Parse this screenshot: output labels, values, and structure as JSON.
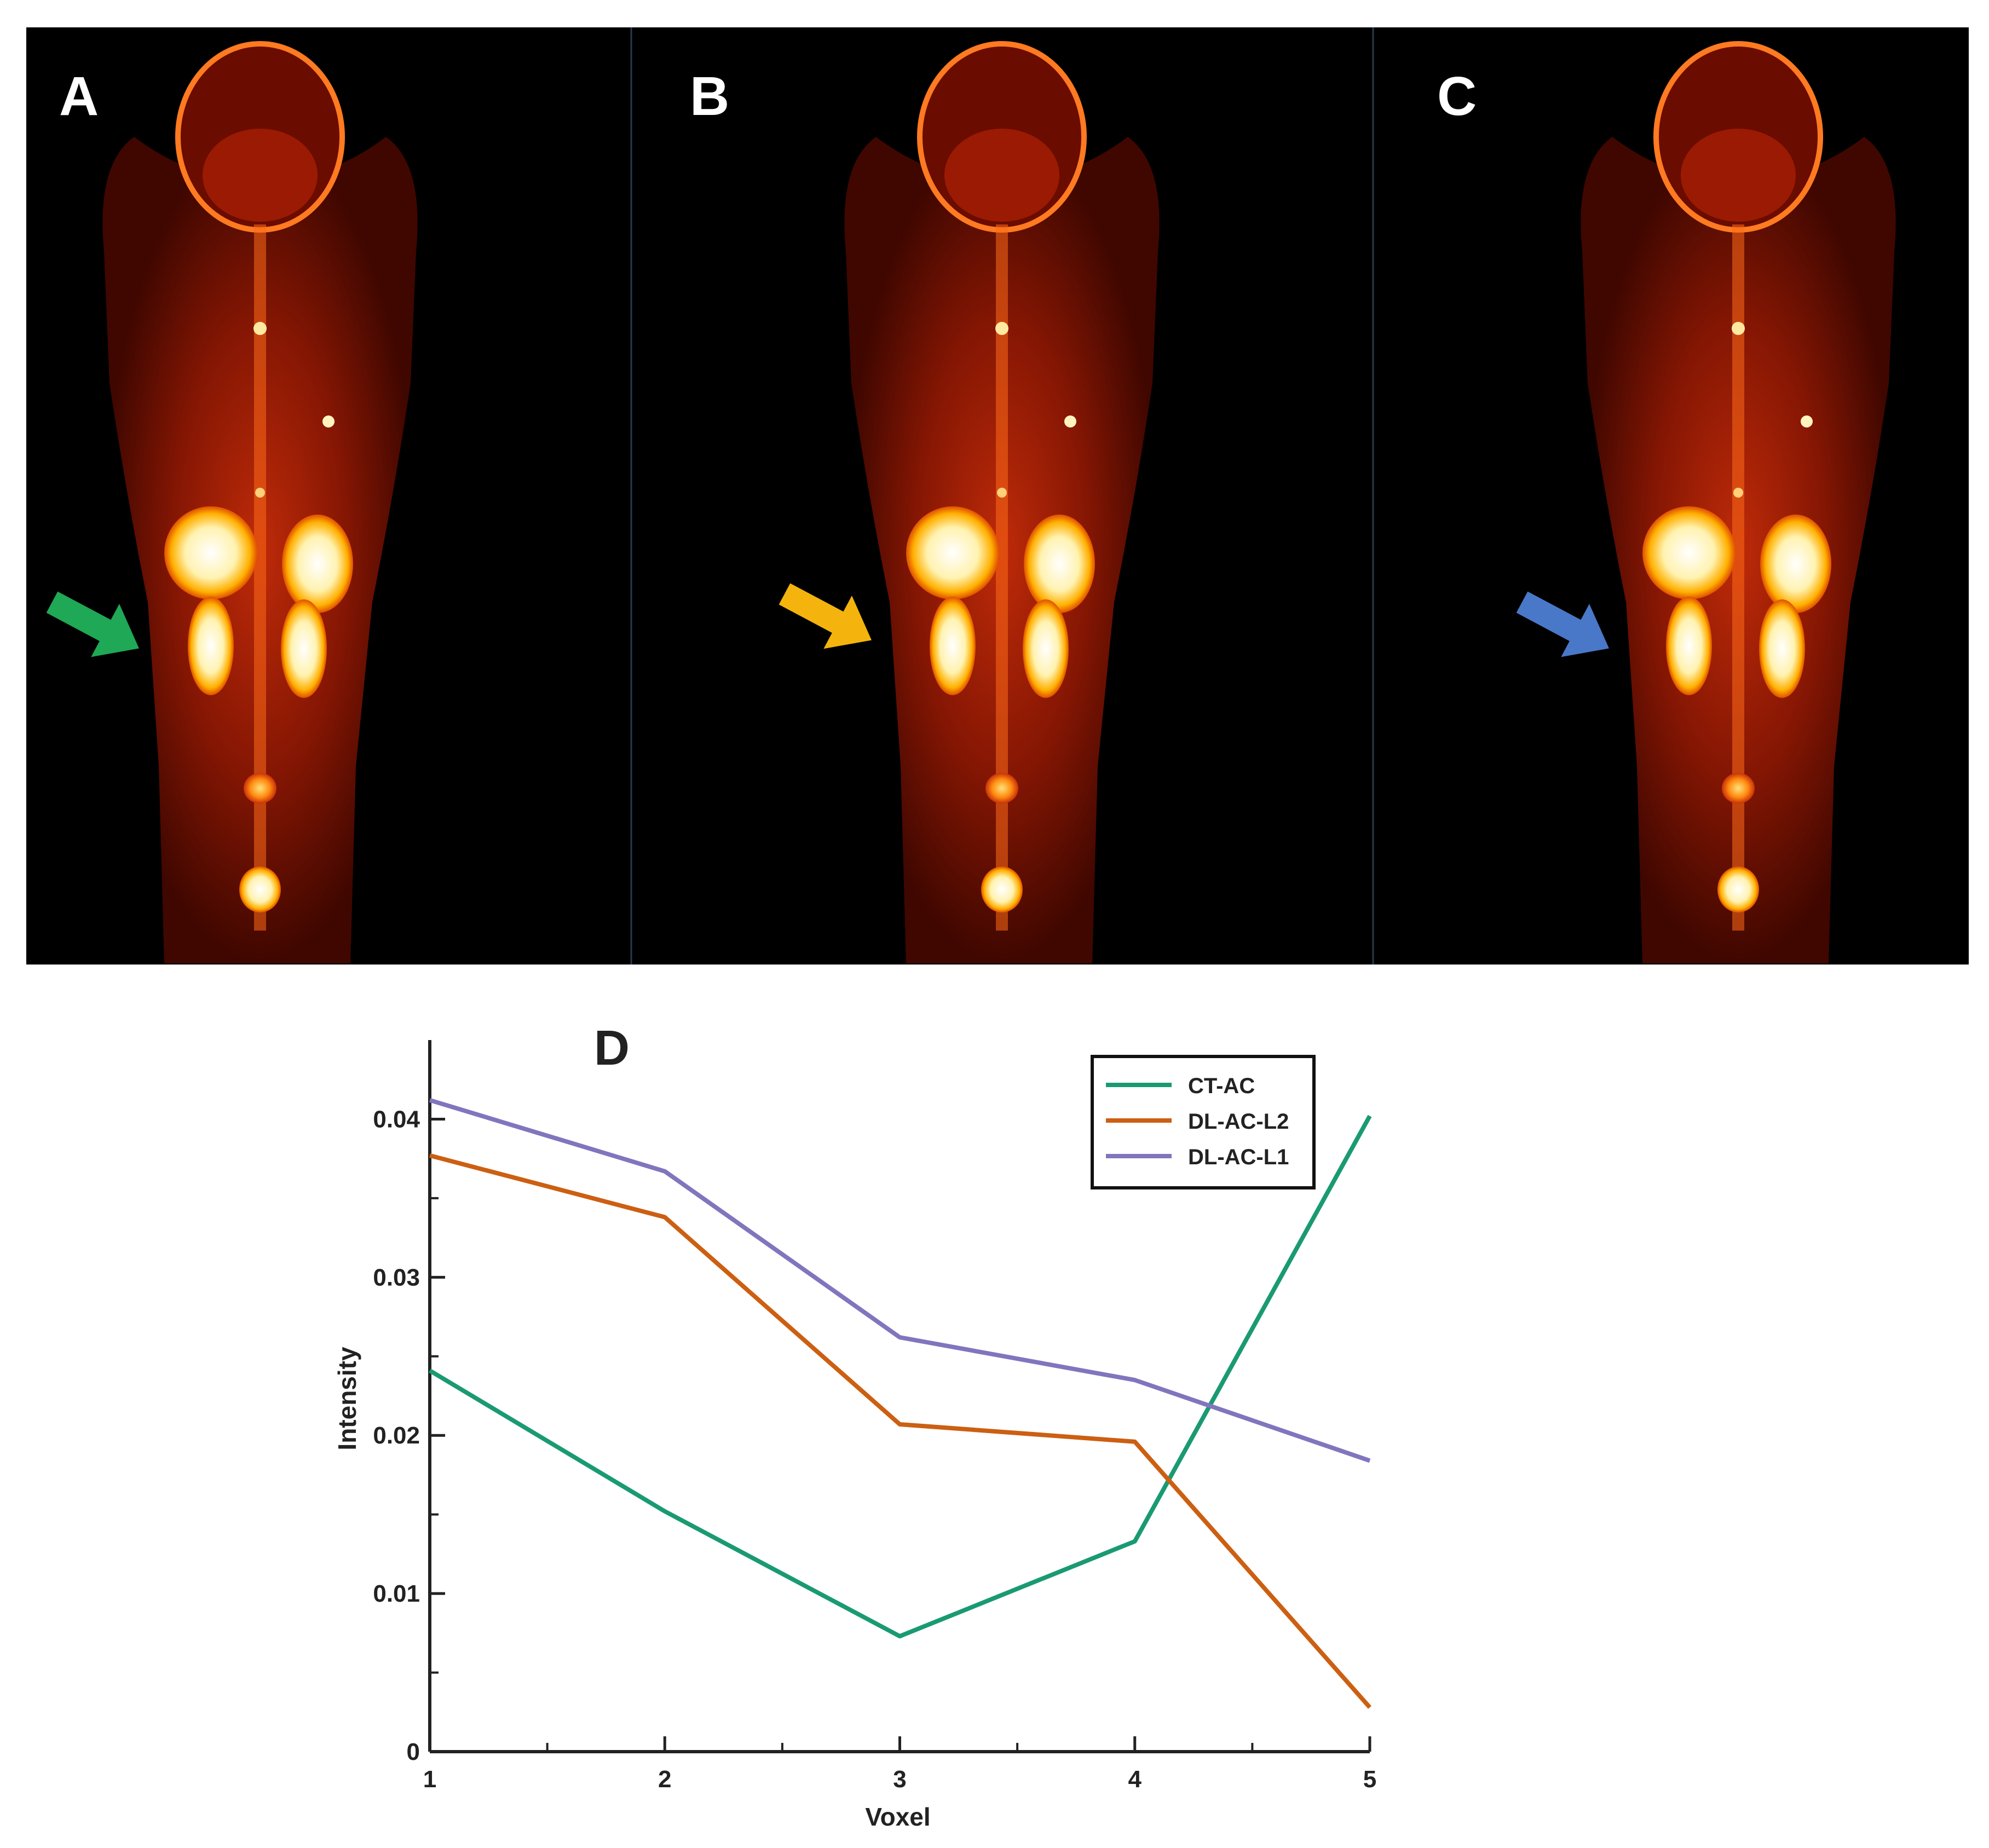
{
  "panels": [
    {
      "label": "A",
      "arrow_color": "#1fa855",
      "arrow_name": "green-arrow"
    },
    {
      "label": "B",
      "arrow_color": "#f5b40d",
      "arrow_name": "yellow-arrow"
    },
    {
      "label": "C",
      "arrow_color": "#4a78c8",
      "arrow_name": "blue-arrow"
    }
  ],
  "chart_data": {
    "type": "line",
    "panel_label": "D",
    "xlabel": "Voxel",
    "ylabel": "Intensity",
    "x": [
      1,
      2,
      3,
      4,
      5
    ],
    "xticks": [
      "1",
      "2",
      "3",
      "4",
      "5"
    ],
    "yticks": [
      "0",
      "0.01",
      "0.02",
      "0.03",
      "0.04"
    ],
    "ytick_values": [
      0,
      0.01,
      0.02,
      0.03,
      0.04
    ],
    "xlim": [
      1,
      5
    ],
    "ylim": [
      0,
      0.045
    ],
    "legend_position": "top-right",
    "series": [
      {
        "name": "CT-AC",
        "color": "#1a9a72",
        "values": [
          0.0241,
          0.0152,
          0.0073,
          0.0133,
          0.0402
        ]
      },
      {
        "name": "DL-AC-L2",
        "color": "#cc5f12",
        "values": [
          0.0377,
          0.0338,
          0.0207,
          0.0196,
          0.0028
        ]
      },
      {
        "name": "DL-AC-L1",
        "color": "#8175be",
        "values": [
          0.0412,
          0.0367,
          0.0262,
          0.0235,
          0.0184
        ]
      }
    ]
  }
}
